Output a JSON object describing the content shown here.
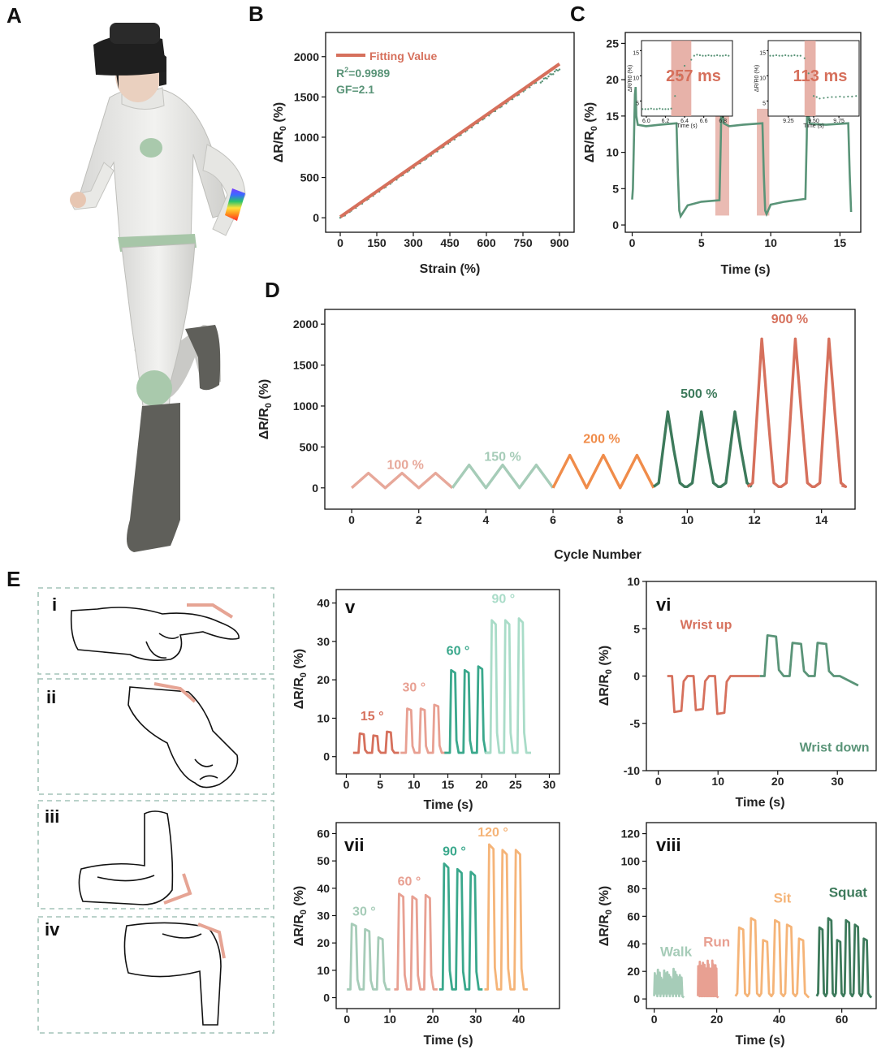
{
  "panel_letters": {
    "a": "A",
    "b": "B",
    "c": "C",
    "d": "D",
    "e": "E"
  },
  "colors": {
    "salmon": "#d6705c",
    "green": "#5a9478",
    "peach": "#e7a89a",
    "mint": "#a6ccb8",
    "orange": "#f08c4a",
    "darkgreen": "#3d7a5b",
    "light_salmon": "#e8a092",
    "teal": "#3aa88c",
    "light_orange": "#f5b478",
    "light_mint": "#a9dcc8",
    "highlight": "#e3a49a"
  },
  "panel_a": {
    "illustration": "person wearing VR headset and sensor suit running"
  },
  "chart_data": [
    {
      "id": "B",
      "type": "scatter",
      "title": "",
      "xlabel": "Strain (%)",
      "ylabel": "ΔR/R0 (%)",
      "xlim": [
        -60,
        960
      ],
      "ylim": [
        -180,
        2300
      ],
      "xticks": [
        "0",
        "150",
        "300",
        "450",
        "600",
        "750",
        "900"
      ],
      "yticks": [
        "0",
        "500",
        "1000",
        "1500",
        "2000"
      ],
      "legend": "Fitting Value",
      "annotations": {
        "r2_prefix": "R",
        "r2_sup": "2",
        "r2_value": "=0.9989",
        "gf": "GF=2.1"
      },
      "fit_line": {
        "x": [
          0,
          900
        ],
        "y": [
          10,
          1910
        ]
      },
      "scatter_range": {
        "x": [
          0,
          900
        ],
        "slope": 2.1
      }
    },
    {
      "id": "C",
      "type": "line",
      "xlabel": "Time (s)",
      "ylabel": "ΔR/R0 (%)",
      "xlim": [
        -0.5,
        16.5
      ],
      "ylim": [
        -1,
        26.5
      ],
      "xticks": [
        "0",
        "5",
        "10",
        "15"
      ],
      "yticks": [
        "0",
        "5",
        "10",
        "15",
        "20",
        "25"
      ],
      "series": [
        {
          "name": "response",
          "x": [
            0,
            0.05,
            0.2,
            0.25,
            0.3,
            0.4,
            1,
            2,
            3.2,
            3.3,
            3.4,
            3.5,
            4,
            5,
            6.3,
            6.4,
            6.45,
            6.5,
            6.6,
            7,
            8,
            9.4,
            9.5,
            9.6,
            9.7,
            10,
            11,
            12.5,
            12.6,
            12.65,
            12.7,
            12.8,
            13,
            14,
            15.6,
            15.7,
            15.8
          ],
          "y": [
            3.5,
            5,
            18,
            19,
            15,
            13.8,
            13.6,
            13.8,
            14,
            7,
            2,
            1.2,
            2.7,
            3.2,
            3.4,
            12,
            19,
            16,
            14,
            13.6,
            13.8,
            14,
            7,
            2,
            1.5,
            2.8,
            3.2,
            3.6,
            12,
            19,
            16,
            14,
            13.9,
            13.8,
            14,
            7,
            1.8
          ]
        }
      ],
      "highlights": [
        [
          6.0,
          7.0
        ],
        [
          9.0,
          9.9
        ]
      ],
      "insets": [
        {
          "label": "257 ms",
          "xticks": [
            "6.0",
            "6.2",
            "6.4",
            "6.6",
            "6.8"
          ],
          "yticks": [
            "5",
            "10",
            "15"
          ],
          "xlabel": "Time (s)",
          "ylabel": "ΔR/R0 (%)",
          "xlim": [
            5.95,
            6.9
          ],
          "ylim": [
            2,
            17
          ],
          "highlight": [
            6.26,
            6.47
          ],
          "points_x": [
            5.96,
            5.99,
            6.02,
            6.05,
            6.08,
            6.11,
            6.14,
            6.17,
            6.2,
            6.23,
            6.26,
            6.3,
            6.35,
            6.4,
            6.47,
            6.5,
            6.53,
            6.56,
            6.59,
            6.62,
            6.65,
            6.68,
            6.71,
            6.74,
            6.77,
            6.8,
            6.83,
            6.86
          ],
          "points_y": [
            3.4,
            3.4,
            3.4,
            3.5,
            3.4,
            3.4,
            3.5,
            3.4,
            3.4,
            3.4,
            3.5,
            6,
            10,
            12,
            13.2,
            14,
            14.2,
            14.1,
            14,
            14,
            14.1,
            14,
            14,
            14.1,
            14,
            14,
            14.1,
            14
          ]
        },
        {
          "label": "113 ms",
          "xticks": [
            "9.25",
            "9.50",
            "9.75"
          ],
          "yticks": [
            "5",
            "10",
            "15"
          ],
          "xlabel": "Time (s)",
          "ylabel": "ΔR/R0 (%)",
          "xlim": [
            9.05,
            9.95
          ],
          "ylim": [
            2,
            17
          ],
          "highlight": [
            9.41,
            9.52
          ],
          "points_x": [
            9.07,
            9.1,
            9.13,
            9.16,
            9.19,
            9.22,
            9.25,
            9.28,
            9.31,
            9.34,
            9.37,
            9.41,
            9.45,
            9.5,
            9.53,
            9.56,
            9.6,
            9.64,
            9.68,
            9.72,
            9.76,
            9.8,
            9.84,
            9.88,
            9.92
          ],
          "points_y": [
            14,
            14,
            14.1,
            14,
            14,
            14.1,
            14,
            14,
            14.1,
            14,
            14,
            13.5,
            10.5,
            6,
            5.8,
            5.5,
            5.6,
            5.7,
            5.8,
            5.8,
            5.9,
            5.8,
            5.9,
            5.9,
            6
          ]
        }
      ]
    },
    {
      "id": "D",
      "type": "line",
      "xlabel": "Cycle Number",
      "ylabel": "ΔR/R0 (%)",
      "xlim": [
        -0.8,
        15
      ],
      "ylim": [
        -260,
        2180
      ],
      "xticks": [
        "0",
        "2",
        "4",
        "6",
        "8",
        "10",
        "12",
        "14"
      ],
      "yticks": [
        "0",
        "500",
        "1000",
        "1500",
        "2000"
      ],
      "series": [
        {
          "name": "100 %",
          "start": 0,
          "peak": 180,
          "color": "peach"
        },
        {
          "name": "150 %",
          "start": 3,
          "peak": 280,
          "color": "mint"
        },
        {
          "name": "200 %",
          "start": 6,
          "peak": 400,
          "color": "orange"
        },
        {
          "name": "500 %",
          "start": 9,
          "peak": 930,
          "color": "darkgreen"
        },
        {
          "name": "900 %",
          "start": 11.8,
          "peak": 1820,
          "color": "salmon"
        }
      ]
    },
    {
      "id": "E-v",
      "type": "line",
      "label": "v",
      "xlabel": "Time (s)",
      "ylabel": "ΔR/R0 (%)",
      "xlim": [
        -1.5,
        31.5
      ],
      "ylim": [
        -4.5,
        43.5
      ],
      "xticks": [
        "0",
        "5",
        "10",
        "15",
        "20",
        "25",
        "30"
      ],
      "yticks": [
        "0",
        "10",
        "20",
        "30",
        "40"
      ],
      "series": [
        {
          "name": "15 °",
          "color": "salmon",
          "peaks": [
            6,
            5.5,
            6.5
          ],
          "t0": 1
        },
        {
          "name": "30 °",
          "color": "light_salmon",
          "peaks": [
            12.5,
            12.5,
            13.5
          ],
          "t0": 8
        },
        {
          "name": "60 °",
          "color": "teal",
          "peaks": [
            22.5,
            22.5,
            23.5
          ],
          "t0": 14.5
        },
        {
          "name": "90 °",
          "color": "light_mint",
          "peaks": [
            35.5,
            35.5,
            36
          ],
          "t0": 20.5
        }
      ]
    },
    {
      "id": "E-vi",
      "type": "line",
      "label": "vi",
      "xlabel": "Time (s)",
      "ylabel": "ΔR/R0 (%)",
      "xlim": [
        -2,
        36.5
      ],
      "ylim": [
        -10,
        10
      ],
      "xticks": [
        "0",
        "10",
        "20",
        "30"
      ],
      "yticks": [
        "10",
        "5",
        "0",
        "-5",
        "-10"
      ],
      "series": [
        {
          "name": "Wrist up",
          "color": "salmon",
          "peaks": [
            -3.8,
            -3.6,
            -4
          ],
          "t0": 1.5
        },
        {
          "name": "Wrist down",
          "color": "green",
          "peaks": [
            4.3,
            3.5,
            3.5
          ],
          "t0": 17
        }
      ]
    },
    {
      "id": "E-vii",
      "type": "line",
      "label": "vii",
      "xlabel": "Time (s)",
      "ylabel": "ΔR/R0 (%)",
      "xlim": [
        -2.5,
        49.5
      ],
      "ylim": [
        -4,
        64
      ],
      "xticks": [
        "0",
        "10",
        "20",
        "30",
        "40"
      ],
      "yticks": [
        "0",
        "10",
        "20",
        "30",
        "40",
        "50",
        "60"
      ],
      "series": [
        {
          "name": "30 °",
          "color": "mint",
          "peaks": [
            27,
            25,
            22
          ],
          "t0": 0
        },
        {
          "name": "60 °",
          "color": "light_salmon",
          "peaks": [
            38,
            37,
            37.5
          ],
          "t0": 11
        },
        {
          "name": "90 °",
          "color": "teal",
          "peaks": [
            49,
            47,
            46
          ],
          "t0": 21.5
        },
        {
          "name": "120 °",
          "color": "light_orange",
          "peaks": [
            56,
            54,
            54
          ],
          "t0": 32
        }
      ]
    },
    {
      "id": "E-viii",
      "type": "line",
      "label": "viii",
      "xlabel": "Time (s)",
      "ylabel": "ΔR/R0 (%)",
      "xlim": [
        -2.5,
        71
      ],
      "ylim": [
        -7,
        128
      ],
      "xticks": [
        "0",
        "20",
        "40",
        "60"
      ],
      "yticks": [
        "0",
        "20",
        "40",
        "60",
        "80",
        "100",
        "120"
      ],
      "series": [
        {
          "name": "Walk",
          "color": "mint",
          "t0": 0,
          "t1": 9,
          "amp": 22,
          "n": 9
        },
        {
          "name": "Run",
          "color": "light_salmon",
          "t0": 14,
          "t1": 20,
          "amp": 28,
          "n": 12
        },
        {
          "name": "Sit",
          "color": "light_orange",
          "t0": 26,
          "t1": 49,
          "amp": 61,
          "n": 6
        },
        {
          "name": "Squat",
          "color": "darkgreen",
          "t0": 52,
          "t1": 69,
          "amp": 61,
          "n": 6
        }
      ]
    }
  ],
  "panel_e": {
    "illustrations": [
      {
        "label": "i",
        "desc": "hand with bending finger"
      },
      {
        "label": "ii",
        "desc": "bent wrist fist"
      },
      {
        "label": "iii",
        "desc": "bent elbow arm"
      },
      {
        "label": "iv",
        "desc": "bent knee leg"
      }
    ]
  }
}
